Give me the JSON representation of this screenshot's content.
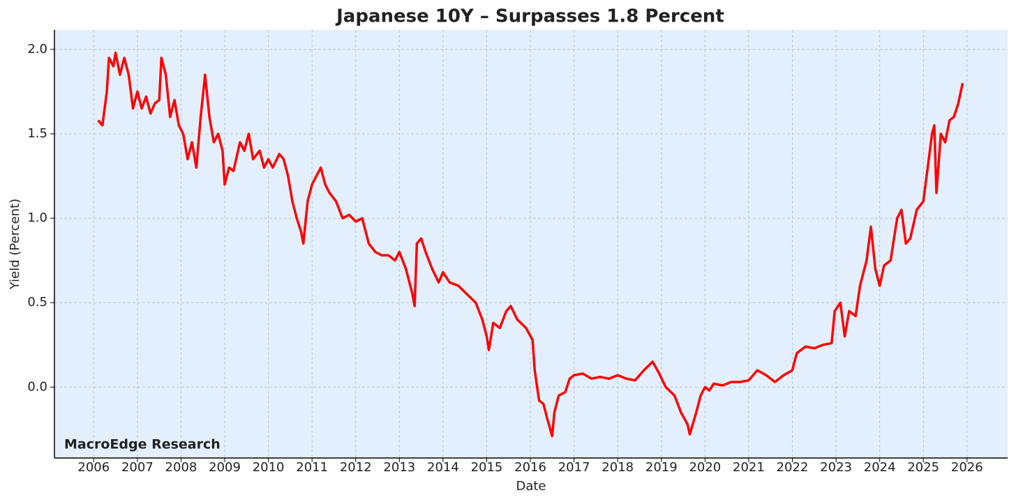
{
  "chart_data": {
    "type": "line",
    "title": "Japanese 10Y – Surpasses 1.8 Percent",
    "x_label": "Date",
    "y_label": "Yield (Percent)",
    "annotation": "MacroEdge Research",
    "x": [
      2006.1,
      2006.2,
      2006.3,
      2006.35,
      2006.45,
      2006.5,
      2006.6,
      2006.7,
      2006.8,
      2006.9,
      2007.0,
      2007.1,
      2007.2,
      2007.3,
      2007.4,
      2007.5,
      2007.55,
      2007.65,
      2007.75,
      2007.85,
      2007.95,
      2008.05,
      2008.15,
      2008.25,
      2008.35,
      2008.45,
      2008.55,
      2008.65,
      2008.75,
      2008.85,
      2008.95,
      2009.0,
      2009.1,
      2009.2,
      2009.35,
      2009.45,
      2009.55,
      2009.65,
      2009.8,
      2009.9,
      2010.0,
      2010.1,
      2010.25,
      2010.35,
      2010.45,
      2010.55,
      2010.65,
      2010.75,
      2010.8,
      2010.9,
      2011.0,
      2011.1,
      2011.2,
      2011.3,
      2011.4,
      2011.55,
      2011.7,
      2011.85,
      2012.0,
      2012.15,
      2012.3,
      2012.45,
      2012.6,
      2012.75,
      2012.9,
      2013.0,
      2013.15,
      2013.3,
      2013.35,
      2013.4,
      2013.5,
      2013.6,
      2013.75,
      2013.9,
      2014.0,
      2014.15,
      2014.35,
      2014.55,
      2014.75,
      2014.9,
      2015.0,
      2015.05,
      2015.15,
      2015.3,
      2015.45,
      2015.55,
      2015.7,
      2015.9,
      2016.05,
      2016.1,
      2016.2,
      2016.3,
      2016.4,
      2016.5,
      2016.55,
      2016.65,
      2016.8,
      2016.9,
      2017.0,
      2017.2,
      2017.4,
      2017.6,
      2017.8,
      2018.0,
      2018.2,
      2018.4,
      2018.6,
      2018.8,
      2018.95,
      2019.1,
      2019.3,
      2019.45,
      2019.6,
      2019.65,
      2019.8,
      2019.9,
      2020.0,
      2020.1,
      2020.2,
      2020.4,
      2020.6,
      2020.8,
      2021.0,
      2021.2,
      2021.4,
      2021.6,
      2021.8,
      2022.0,
      2022.1,
      2022.3,
      2022.5,
      2022.7,
      2022.9,
      2022.97,
      2023.1,
      2023.2,
      2023.3,
      2023.45,
      2023.55,
      2023.7,
      2023.8,
      2023.9,
      2024.0,
      2024.1,
      2024.25,
      2024.4,
      2024.5,
      2024.6,
      2024.7,
      2024.85,
      2025.0,
      2025.1,
      2025.2,
      2025.25,
      2025.3,
      2025.4,
      2025.5,
      2025.6,
      2025.7,
      2025.8,
      2025.9
    ],
    "series": [
      {
        "name": "Japanese 10Y",
        "color": "#ff0000",
        "values": [
          1.58,
          1.55,
          1.75,
          1.95,
          1.9,
          1.98,
          1.85,
          1.95,
          1.85,
          1.65,
          1.75,
          1.65,
          1.72,
          1.62,
          1.68,
          1.7,
          1.95,
          1.85,
          1.6,
          1.7,
          1.55,
          1.5,
          1.35,
          1.45,
          1.3,
          1.6,
          1.85,
          1.6,
          1.45,
          1.5,
          1.4,
          1.2,
          1.3,
          1.28,
          1.45,
          1.4,
          1.5,
          1.35,
          1.4,
          1.3,
          1.35,
          1.3,
          1.38,
          1.35,
          1.25,
          1.1,
          1.0,
          0.92,
          0.85,
          1.1,
          1.2,
          1.25,
          1.3,
          1.2,
          1.15,
          1.1,
          1.0,
          1.02,
          0.98,
          1.0,
          0.85,
          0.8,
          0.78,
          0.78,
          0.75,
          0.8,
          0.7,
          0.55,
          0.48,
          0.85,
          0.88,
          0.8,
          0.7,
          0.62,
          0.68,
          0.62,
          0.6,
          0.55,
          0.5,
          0.4,
          0.3,
          0.22,
          0.38,
          0.35,
          0.45,
          0.48,
          0.4,
          0.35,
          0.28,
          0.1,
          -0.08,
          -0.1,
          -0.2,
          -0.29,
          -0.15,
          -0.05,
          -0.03,
          0.05,
          0.07,
          0.08,
          0.05,
          0.06,
          0.05,
          0.07,
          0.05,
          0.04,
          0.1,
          0.15,
          0.08,
          0.0,
          -0.05,
          -0.15,
          -0.22,
          -0.28,
          -0.15,
          -0.05,
          0.0,
          -0.02,
          0.02,
          0.01,
          0.03,
          0.03,
          0.04,
          0.1,
          0.07,
          0.03,
          0.07,
          0.1,
          0.2,
          0.24,
          0.23,
          0.25,
          0.26,
          0.45,
          0.5,
          0.3,
          0.45,
          0.42,
          0.6,
          0.75,
          0.95,
          0.7,
          0.6,
          0.72,
          0.75,
          1.0,
          1.05,
          0.85,
          0.88,
          1.05,
          1.1,
          1.3,
          1.5,
          1.55,
          1.15,
          1.5,
          1.45,
          1.58,
          1.6,
          1.68,
          1.8
        ]
      }
    ],
    "xlim": [
      2005.1,
      2026.93
    ],
    "xticks": [
      2006,
      2007,
      2008,
      2009,
      2010,
      2011,
      2012,
      2013,
      2014,
      2015,
      2016,
      2017,
      2018,
      2019,
      2020,
      2021,
      2022,
      2023,
      2024,
      2025,
      2026
    ],
    "ylim": [
      -0.42,
      2.115
    ],
    "yticks": [
      {
        "value": 0,
        "label": "0.0"
      },
      0.5,
      {
        "value": 1,
        "label": "1.0"
      },
      1.5,
      {
        "value": 2,
        "label": "2.0"
      }
    ],
    "grid": true,
    "plot_background": "#e3effc",
    "annotation_color": "#7b7fef"
  }
}
